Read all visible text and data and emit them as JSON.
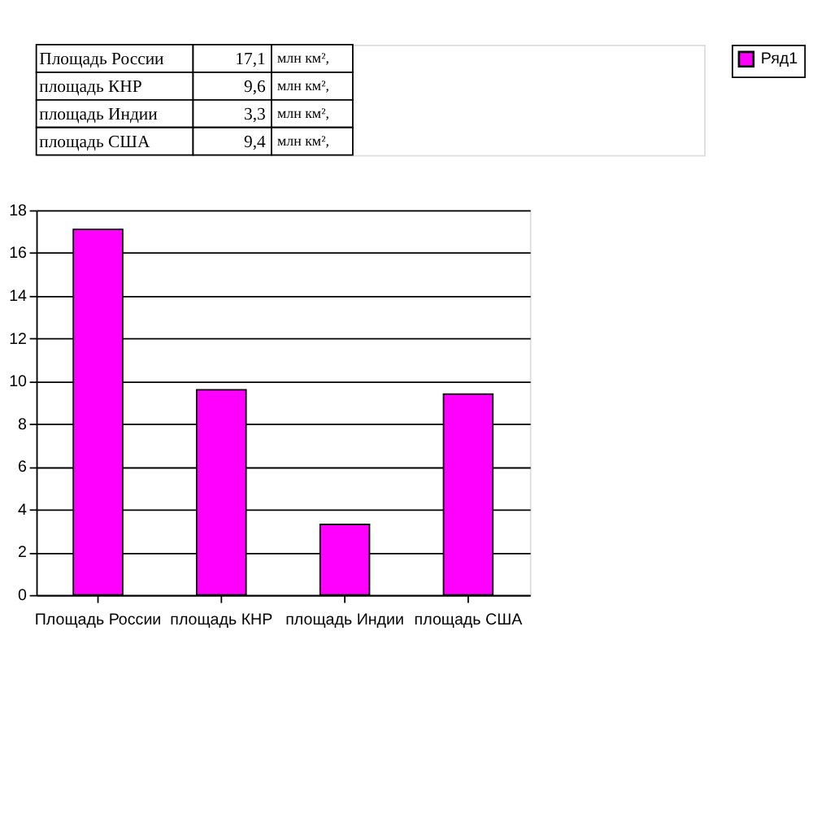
{
  "chart_data": {
    "type": "bar",
    "categories": [
      "Площадь России",
      "площадь КНР",
      "площадь Индии",
      "площадь США"
    ],
    "series": [
      {
        "name": "Ряд1",
        "color": "#ff00ff",
        "values": [
          17.1,
          9.6,
          3.3,
          9.4
        ]
      }
    ],
    "value_labels": [
      "17,1",
      "9,6",
      "3,3",
      "9,4"
    ],
    "annotations": [
      "млн км²,",
      "млн км²,",
      "млн км²,",
      "млн км²,"
    ],
    "ylim": [
      0,
      18
    ],
    "yticks": [
      0,
      2,
      4,
      6,
      8,
      10,
      12,
      14,
      16,
      18
    ],
    "grid": "y",
    "legend": "right"
  }
}
